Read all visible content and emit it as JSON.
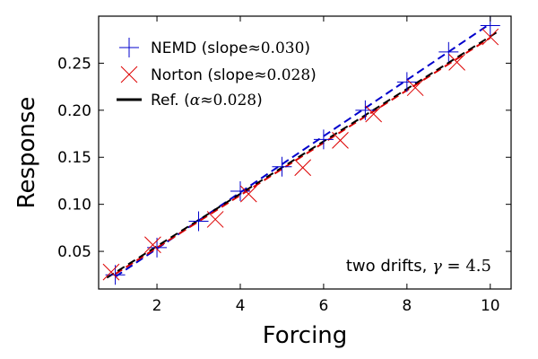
{
  "chart_data": {
    "type": "scatter",
    "xlabel": "Forcing",
    "ylabel": "Response",
    "xlim": [
      0.6,
      10.5
    ],
    "ylim": [
      0.01,
      0.3
    ],
    "xticks": [
      2,
      4,
      6,
      8,
      10
    ],
    "yticks": [
      0.05,
      0.1,
      0.15,
      0.2,
      0.25
    ],
    "xtick_labels": [
      "2",
      "4",
      "6",
      "8",
      "10"
    ],
    "ytick_labels": [
      "0.05",
      "0.10",
      "0.15",
      "0.20",
      "0.25"
    ],
    "grid": false,
    "legend_position": "top-left",
    "series": [
      {
        "name": "NEMD",
        "marker": "plus",
        "color": "#0000cc",
        "fit_color": "#0000cc",
        "fit_style": "dashed",
        "slope_value": "0.030",
        "x": [
          1,
          2,
          3,
          4,
          5,
          6,
          7,
          8,
          9,
          10
        ],
        "y": [
          0.025,
          0.054,
          0.082,
          0.114,
          0.14,
          0.169,
          0.2,
          0.23,
          0.262,
          0.29
        ],
        "fit": {
          "x": [
            1,
            10
          ],
          "y": [
            0.023,
            0.292
          ]
        }
      },
      {
        "name": "Norton",
        "marker": "x",
        "color": "#dd0000",
        "fit_color": "#dd0000",
        "fit_style": "dashed",
        "slope_value": "0.028",
        "x": [
          0.9,
          1.9,
          3.4,
          4.2,
          5.5,
          6.4,
          7.2,
          8.2,
          9.2,
          10.0
        ],
        "y": [
          0.028,
          0.057,
          0.084,
          0.111,
          0.139,
          0.168,
          0.196,
          0.224,
          0.251,
          0.278
        ],
        "fit": {
          "x": [
            1,
            10
          ],
          "y": [
            0.026,
            0.277
          ]
        }
      }
    ],
    "reference": {
      "name": "Ref.",
      "symbol": "α",
      "value": "0.028",
      "color": "#000000",
      "style": "dashed",
      "fit": {
        "x": [
          0.8,
          10.2
        ],
        "y": [
          0.022,
          0.284
        ]
      }
    },
    "legend": [
      {
        "label": "NEMD (slope",
        "approx": "≈",
        "value": "0.030",
        "close": ")"
      },
      {
        "label": "Norton (slope",
        "approx": "≈",
        "value": "0.028",
        "close": ")"
      },
      {
        "label": "Ref. (",
        "symbol": "α",
        "approx": "≈",
        "value": "0.028",
        "close": ")"
      }
    ],
    "annotation": {
      "text": "two drifts, ",
      "symbol": "γ",
      "eq": " = ",
      "value": "4.5"
    }
  }
}
